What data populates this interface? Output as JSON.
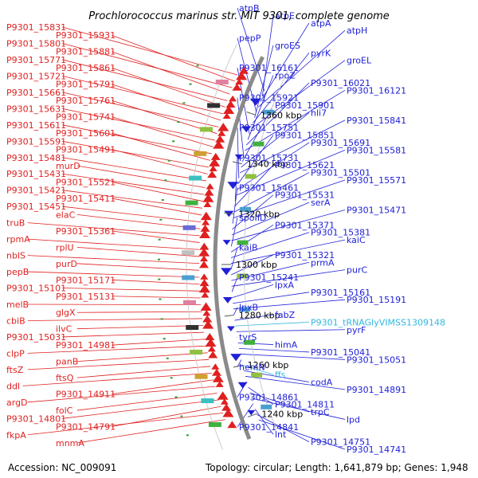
{
  "title": "Prochlorococcus marinus str. MIT 9301, complete genome",
  "accession": "Accession: NC_009091",
  "summary": "Topology: circular; Length: 1,641,879 bp; Genes: 1,948",
  "colors": {
    "forward": "#e02020",
    "reverse": "#2020d8",
    "rna": "#30b8e0",
    "backbone": "#8a8a8a",
    "text_dark": "#000000"
  },
  "scale": {
    "kbp_labels": [
      "1360 kbp",
      "1340 kbp",
      "1320 kbp",
      "1300 kbp",
      "1280 kbp",
      "1260 kbp",
      "1240 kbp"
    ]
  },
  "left_labels": [
    "P9301_15831",
    "P9301_15931",
    "P9301_15801",
    "P9301_15881",
    "P9301_15771",
    "P9301_15861",
    "P9301_15721",
    "P9301_15791",
    "P9301_15661",
    "P9301_15761",
    "P9301_15631",
    "P9301_15741",
    "P9301_15611",
    "P9301_15601",
    "P9301_15591",
    "P9301_15491",
    "P9301_15481",
    "murD",
    "P9301_15431",
    "P9301_15521",
    "P9301_15421",
    "P9301_15411",
    "P9301_15451",
    "elaC",
    "truB",
    "P9301_15361",
    "rpmA",
    "rplU",
    "nblS",
    "purD",
    "pepB",
    "P9301_15171",
    "P9301_15101",
    "P9301_15131",
    "melB",
    "glgX",
    "cbiB",
    "ilvC",
    "P9301_15031",
    "P9301_14981",
    "clpP",
    "panB",
    "ftsZ",
    "ftsQ",
    "ddl",
    "P9301_14911",
    "argD",
    "folC",
    "P9301_14801",
    "P9301_14791",
    "fkpA",
    "mnmA"
  ],
  "right_labels": [
    "atpB",
    "atpE",
    "atpA",
    "atpH",
    "pepP",
    "groES",
    "pyrK",
    "groEL",
    "P9301_16161",
    "rpoZ",
    "P9301_16021",
    "P9301_16121",
    "P9301_15921",
    "P9301_15901",
    "hli7",
    "P9301_15841",
    "P9301_15751",
    "P9301_15851",
    "P9301_15691",
    "P9301_15581",
    "P9301_15731",
    "P9301_15621",
    "P9301_15501",
    "P9301_15571",
    "P9301_15461",
    "P9301_15531",
    "serA",
    "P9301_15471",
    "spoIID",
    "P9301_15371",
    "P9301_15381",
    "kaiC",
    "kaiB",
    "P9301_15321",
    "prmA",
    "purC",
    "P9301_15241",
    "lpxA",
    "P9301_15161",
    "P9301_15191",
    "lpxB",
    "fabZ",
    "P9301_tRNAGlyVIMSS1309148",
    "pyrF",
    "tyrS",
    "himA",
    "P9301_15041",
    "P9301_15051",
    "hemN",
    "ffs",
    "codA",
    "P9301_14891",
    "P9301_14861",
    "P9301_14811",
    "trpC",
    "lpd",
    "P9301_14841",
    "lnt",
    "P9301_14751",
    "P9301_14741"
  ]
}
